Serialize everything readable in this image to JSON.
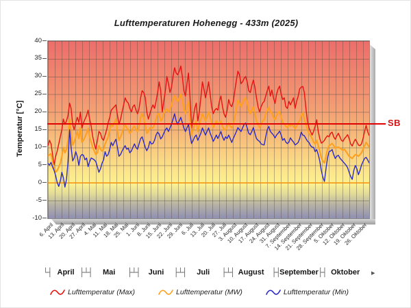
{
  "header": {
    "title": "Lufttemperaturen Hohenegg - 433m (2025)"
  },
  "y_axis": {
    "label": "Temperatur [°C]"
  },
  "annotations": {
    "sb_label": "SB"
  },
  "month_band": {
    "start_glyph": "└┤",
    "end_arrow": "▸",
    "glyph_wide": "├┴┤",
    "glyph_narrow": "├┤",
    "months": [
      {
        "label": "April",
        "center_day": 12,
        "boundary_day": 25,
        "sep_after": "wide"
      },
      {
        "label": "Mai",
        "center_day": 40,
        "boundary_day": 56,
        "sep_after": "wide"
      },
      {
        "label": "Juni",
        "center_day": 70.5,
        "boundary_day": 86,
        "sep_after": "wide"
      },
      {
        "label": "Juli",
        "center_day": 101,
        "boundary_day": 117,
        "sep_after": "wide"
      },
      {
        "label": "August",
        "center_day": 132,
        "boundary_day": 148,
        "sep_after": "narrow"
      },
      {
        "label": "September",
        "center_day": 163,
        "boundary_day": 178,
        "sep_after": "narrow"
      },
      {
        "label": "Oktober",
        "center_day": 193,
        "boundary_day": null,
        "sep_after": "arrow"
      }
    ]
  },
  "legend": {
    "items": [
      {
        "label": "Lufttemperatur (Max)",
        "color": "#e81212"
      },
      {
        "label": "Lufttemperatur (MW)",
        "color": "#ffa01e"
      },
      {
        "label": "Lufttemperatur (Min)",
        "color": "#2a2ac8"
      }
    ]
  },
  "chart_data": {
    "type": "line",
    "title": "Lufttemperaturen Hohenegg - 433m (2025)",
    "xlabel": "",
    "ylabel": "Temperatur [°C]",
    "ylim": [
      -10,
      40
    ],
    "y_tick_labels": [
      40,
      35,
      30,
      25,
      20,
      15,
      10,
      5,
      0,
      -5,
      -10
    ],
    "grid": true,
    "legend_position": "bottom",
    "x_unit": "day (daily values, day 0 = 6. April 2025)",
    "x_days_total": 208,
    "x_tick_interval_days": 7,
    "x_tick_labels": [
      "6. April",
      "13. April",
      "20. April",
      "27. April",
      "4. Mai",
      "11. Mai",
      "18. Mai",
      "25. Mai",
      "1. Juni",
      "8. Juni",
      "15. Juni",
      "22. Juni",
      "29. Juni",
      "6. Juli",
      "13. Juli",
      "20. Juli",
      "27. Juli",
      "3. August",
      "10. August",
      "17. August",
      "24. August",
      "31. August",
      "7. September",
      "14. September",
      "21. September",
      "28. September",
      "5. Oktober",
      "12. Oktober",
      "19. Oktober",
      "26. Oktober"
    ],
    "reference_lines": [
      {
        "label": "SB",
        "value": 16.4,
        "color": "#e00000"
      },
      {
        "label": "",
        "value": 0,
        "color": "#ff8c00"
      }
    ],
    "series": [
      {
        "name": "Lufttemperatur (Max)",
        "color": "#e81212",
        "width": 1.4,
        "values": [
          10.5,
          12,
          11,
          8,
          5,
          7.5,
          9,
          11,
          13,
          15,
          18,
          16.5,
          17.5,
          19,
          22.5,
          21,
          16.5,
          15,
          17,
          18.5,
          17,
          20,
          15.5,
          17,
          18,
          19,
          20.5,
          18,
          16,
          13,
          11,
          9.5,
          12,
          14.5,
          14,
          12.5,
          12,
          13.5,
          15,
          17,
          18.5,
          20.5,
          21,
          21.5,
          22,
          19,
          16.5,
          18,
          20,
          22,
          24,
          23,
          22.5,
          21,
          20,
          21.5,
          22,
          20.5,
          19.5,
          21,
          24,
          26,
          25.5,
          24,
          20,
          18,
          19.5,
          21,
          22,
          21,
          23,
          25.5,
          28.5,
          26,
          20,
          23,
          26,
          30,
          28,
          25.5,
          27,
          30,
          32.5,
          31,
          30.5,
          31.5,
          33,
          30,
          26,
          24.5,
          28,
          31,
          24,
          15.5,
          18,
          21,
          22.5,
          17.5,
          20,
          24,
          28.5,
          26.5,
          24,
          26,
          28.5,
          25,
          21.5,
          19.5,
          20.5,
          21,
          20.5,
          23,
          24.5,
          21.5,
          19.5,
          18.5,
          20.5,
          23.5,
          22,
          21.5,
          23,
          26,
          29,
          31.5,
          30.5,
          28,
          28.5,
          29.5,
          30,
          28.5,
          26,
          25.5,
          27.5,
          29,
          27,
          24,
          21.5,
          20,
          21.5,
          22.5,
          23,
          24.5,
          26,
          27.3,
          24.5,
          26.2,
          24,
          22.4,
          25,
          26.5,
          27.3,
          25,
          23.5,
          24,
          21.5,
          21,
          23,
          22,
          23,
          24,
          21,
          23,
          24.5,
          26.5,
          27,
          27.2,
          25.5,
          21,
          17.5,
          15.5,
          14.5,
          13.5,
          14.5,
          16,
          17.8,
          14.5,
          12.5,
          11.2,
          11.5,
          12,
          12.8,
          13.3,
          13,
          14,
          14.3,
          13,
          12.3,
          13.2,
          14,
          13,
          12,
          11.7,
          12.5,
          13,
          13.6,
          12.5,
          11,
          10.4,
          11.5,
          12.3,
          11.5,
          10.7,
          10.5,
          11,
          12.5,
          14.5,
          16.2,
          14.5,
          13.3
        ]
      },
      {
        "name": "Lufttemperatur (MW)",
        "color": "#ffa01e",
        "width": 2.1,
        "values": [
          7.5,
          8,
          8.2,
          6,
          4.2,
          3,
          3.5,
          4.5,
          5.5,
          7.5,
          10,
          8.5,
          9.5,
          12,
          18,
          14,
          10.7,
          11.5,
          13,
          14.5,
          12.5,
          15.5,
          11.5,
          12,
          13,
          14,
          15.3,
          13,
          11.5,
          10,
          9,
          8,
          8.5,
          10.5,
          9.5,
          9,
          9.5,
          11,
          12,
          13,
          15,
          16.5,
          16,
          17,
          18,
          14.5,
          12,
          13,
          14,
          15.5,
          16.5,
          15.5,
          15,
          14,
          14.5,
          15.5,
          16,
          15,
          14.5,
          16,
          18.5,
          19.5,
          18.5,
          16.5,
          14,
          14.5,
          15.5,
          15.5,
          15.6,
          16.5,
          18,
          19.5,
          19.5,
          17.5,
          18,
          19.5,
          20.5,
          20.8,
          20,
          20.5,
          22,
          23.5,
          24.6,
          23.5,
          23,
          24,
          25,
          23.5,
          21,
          19.5,
          21.5,
          23,
          18,
          13.6,
          15,
          16.5,
          17.5,
          14.5,
          16.5,
          18,
          19.5,
          18.5,
          17.5,
          18.5,
          20,
          18.5,
          17,
          15.6,
          16.5,
          17.5,
          16.5,
          17,
          17.5,
          16,
          15,
          14.9,
          16,
          16.9,
          16,
          15.5,
          16.5,
          18.5,
          21,
          23.3,
          22.5,
          21.5,
          22.5,
          23.5,
          24,
          22.5,
          20.5,
          19.5,
          20.5,
          21.4,
          19.5,
          17.5,
          16.5,
          15.6,
          16.5,
          17.5,
          17.8,
          19.5,
          20.5,
          21.4,
          20,
          19.8,
          18.5,
          17.8,
          19,
          19.8,
          20.1,
          18.5,
          17,
          16.6,
          16,
          15.6,
          16.6,
          16,
          16.5,
          16,
          15.3,
          16,
          17,
          17.5,
          19,
          19.8,
          18,
          16.6,
          15,
          14,
          13.3,
          12.5,
          11.5,
          11,
          12,
          10.5,
          9,
          7,
          6.2,
          5.6,
          7.5,
          9.5,
          10.5,
          10.8,
          11.1,
          10.5,
          9.8,
          10,
          10.1,
          9.8,
          9.5,
          9.2,
          9.5,
          8.8,
          8.2,
          7.5,
          7.2,
          6.9,
          7.5,
          8,
          7.8,
          7.5,
          8,
          8.5,
          9.5,
          10.5,
          11.4,
          10.8,
          10.1
        ]
      },
      {
        "name": "Lufttemperatur (Min)",
        "color": "#2a2ac8",
        "width": 1.4,
        "values": [
          5.5,
          5,
          5.8,
          4.5,
          3.5,
          2,
          0.1,
          -1,
          0.5,
          3,
          1.5,
          -1.2,
          1,
          6,
          15,
          10,
          6.2,
          7,
          8.8,
          7.5,
          4.9,
          7.5,
          8,
          7.8,
          6.5,
          7,
          4.6,
          6,
          7,
          6.8,
          6.5,
          6,
          4.5,
          3,
          4,
          5.5,
          6.5,
          8.8,
          7.5,
          8,
          9.5,
          11.4,
          10.5,
          11.5,
          12.3,
          10,
          7.5,
          8,
          9,
          9.8,
          10.5,
          9.5,
          9.8,
          8.5,
          9,
          10,
          11,
          10,
          9.5,
          11,
          12.5,
          13,
          11.5,
          10,
          9.1,
          10,
          11.7,
          11,
          11.1,
          12,
          13.5,
          14.3,
          13.8,
          12.4,
          13,
          14,
          15,
          15.5,
          14.5,
          15.5,
          16.5,
          18,
          19.5,
          17.5,
          16.5,
          17.5,
          18.5,
          17,
          15.5,
          14.5,
          15.5,
          16.5,
          13.5,
          11.1,
          12,
          13,
          13.5,
          12,
          13,
          14,
          15.5,
          14.5,
          13.5,
          14.5,
          15.5,
          14,
          13,
          11.7,
          12.5,
          13.5,
          12.5,
          13.5,
          14.5,
          13,
          12,
          13,
          12.5,
          13.5,
          12.5,
          11.4,
          12.5,
          13.5,
          14.5,
          15.6,
          15,
          14.5,
          15.5,
          16.5,
          16.9,
          15.5,
          14,
          13.6,
          14.5,
          15.6,
          14,
          12.5,
          12,
          11.7,
          11,
          10.8,
          10.7,
          13,
          15,
          15.9,
          14.5,
          14,
          13.5,
          12.7,
          13.5,
          14,
          14.6,
          13.5,
          12,
          12.5,
          11.5,
          11.1,
          11.5,
          12.7,
          12,
          11.5,
          10.7,
          11,
          11.4,
          12.5,
          14.3,
          13.5,
          13.3,
          12.5,
          11.8,
          11.4,
          10.5,
          10.1,
          10,
          8.8,
          9.4,
          8,
          6.2,
          3.5,
          1.5,
          0.4,
          4,
          7,
          8.8,
          9,
          9.4,
          8,
          6.9,
          7.5,
          7.8,
          7,
          6.5,
          6,
          5.5,
          5,
          4.3,
          3,
          1.8,
          1,
          3.5,
          4.9,
          4,
          2.3,
          3.5,
          5,
          6,
          6.9,
          7.2,
          6.5,
          5.6
        ]
      }
    ]
  }
}
